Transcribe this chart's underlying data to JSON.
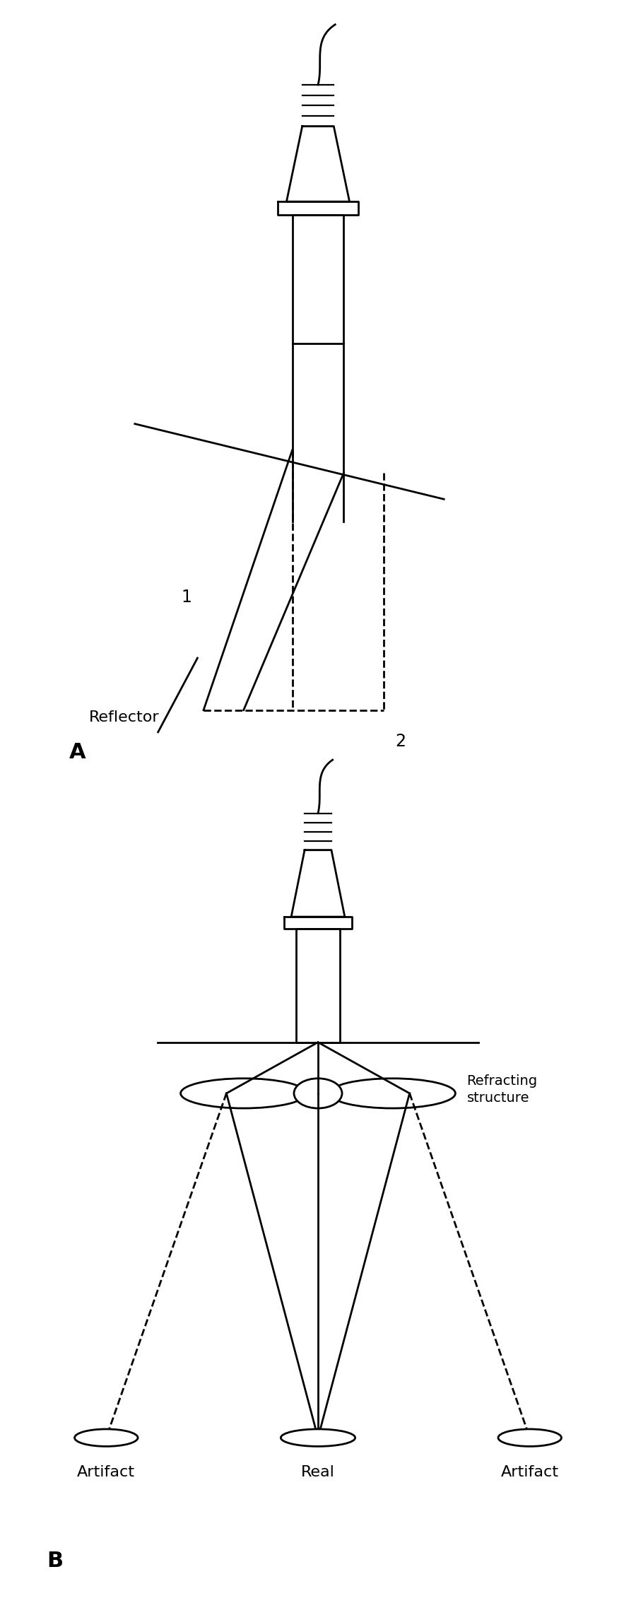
{
  "fig_width": 9.0,
  "fig_height": 22.68,
  "dpi": 100,
  "bg_color": "#ffffff",
  "line_color": "#000000",
  "lw": 2.0,
  "panel_A": {
    "label": "A",
    "label_1": "1",
    "label_2": "2",
    "label_reflector": "Reflector"
  },
  "panel_B": {
    "label": "B",
    "label_refracting": "Refracting\nstructure",
    "label_artifact_left": "Artifact",
    "label_real": "Real",
    "label_artifact_right": "Artifact"
  }
}
